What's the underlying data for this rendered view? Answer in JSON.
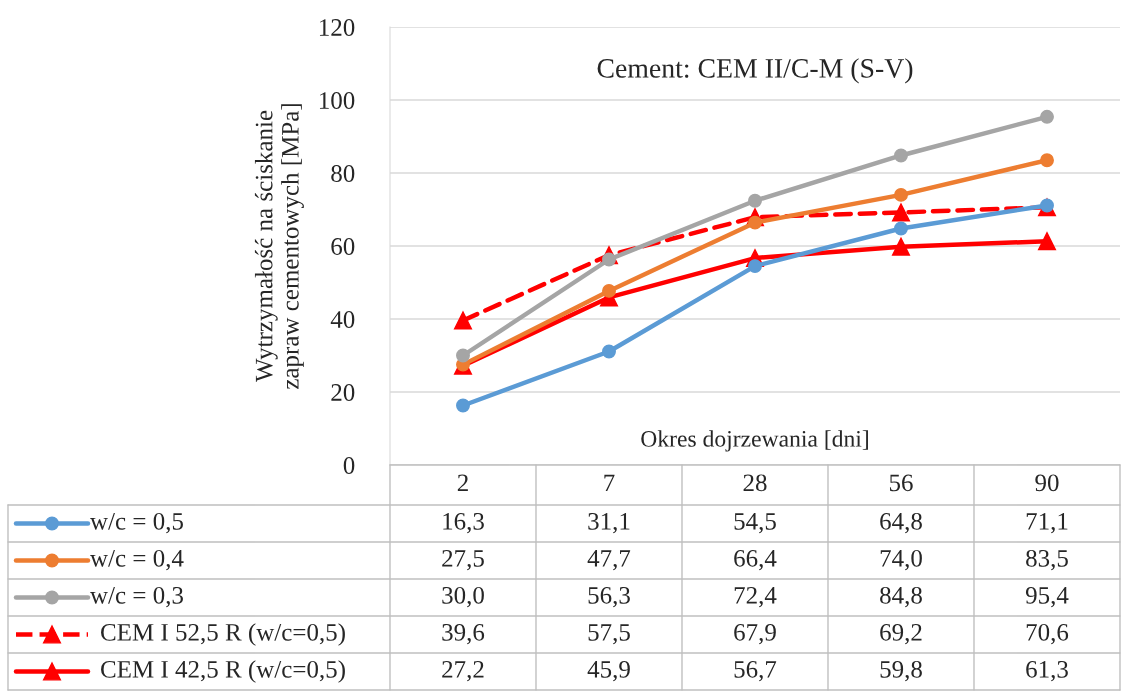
{
  "chart_data": {
    "type": "line",
    "title": "Cement: CEM II/C-M (S-V)",
    "xlabel": "Okres dojrzewania [dni]",
    "ylabel": "Wytrzymałość na ściskanie\nzapraw cementowych [MPa]",
    "categories": [
      "2",
      "7",
      "28",
      "56",
      "90"
    ],
    "series": [
      {
        "name": "w/c = 0,5",
        "color": "#5b9bd5",
        "marker": "circle",
        "line_style": "solid",
        "values": [
          16.3,
          31.1,
          54.5,
          64.8,
          71.1
        ],
        "value_labels": [
          "16,3",
          "31,1",
          "54,5",
          "64,8",
          "71,1"
        ]
      },
      {
        "name": "w/c = 0,4",
        "color": "#ed7d31",
        "marker": "circle",
        "line_style": "solid",
        "values": [
          27.5,
          47.7,
          66.4,
          74.0,
          83.5
        ],
        "value_labels": [
          "27,5",
          "47,7",
          "66,4",
          "74,0",
          "83,5"
        ]
      },
      {
        "name": "w/c = 0,3",
        "color": "#a5a5a5",
        "marker": "circle",
        "line_style": "solid",
        "values": [
          30.0,
          56.3,
          72.4,
          84.8,
          95.4
        ],
        "value_labels": [
          "30,0",
          "56,3",
          "72,4",
          "84,8",
          "95,4"
        ]
      },
      {
        "name": "CEM I 52,5 R (w/c=0,5)",
        "color": "#ff0000",
        "marker": "triangle",
        "line_style": "dashed",
        "values": [
          39.6,
          57.5,
          67.9,
          69.2,
          70.6
        ],
        "value_labels": [
          "39,6",
          "57,5",
          "67,9",
          "69,2",
          "70,6"
        ]
      },
      {
        "name": "CEM I 42,5 R (w/c=0,5)",
        "color": "#ff0000",
        "marker": "triangle",
        "line_style": "solid",
        "values": [
          27.2,
          45.9,
          56.7,
          59.8,
          61.3
        ],
        "value_labels": [
          "27,2",
          "45,9",
          "56,7",
          "59,8",
          "61,3"
        ]
      }
    ],
    "ylim": [
      0,
      120
    ],
    "yticks": [
      0,
      20,
      40,
      60,
      80,
      100,
      120
    ],
    "grid": "y",
    "legend": "bottom"
  }
}
